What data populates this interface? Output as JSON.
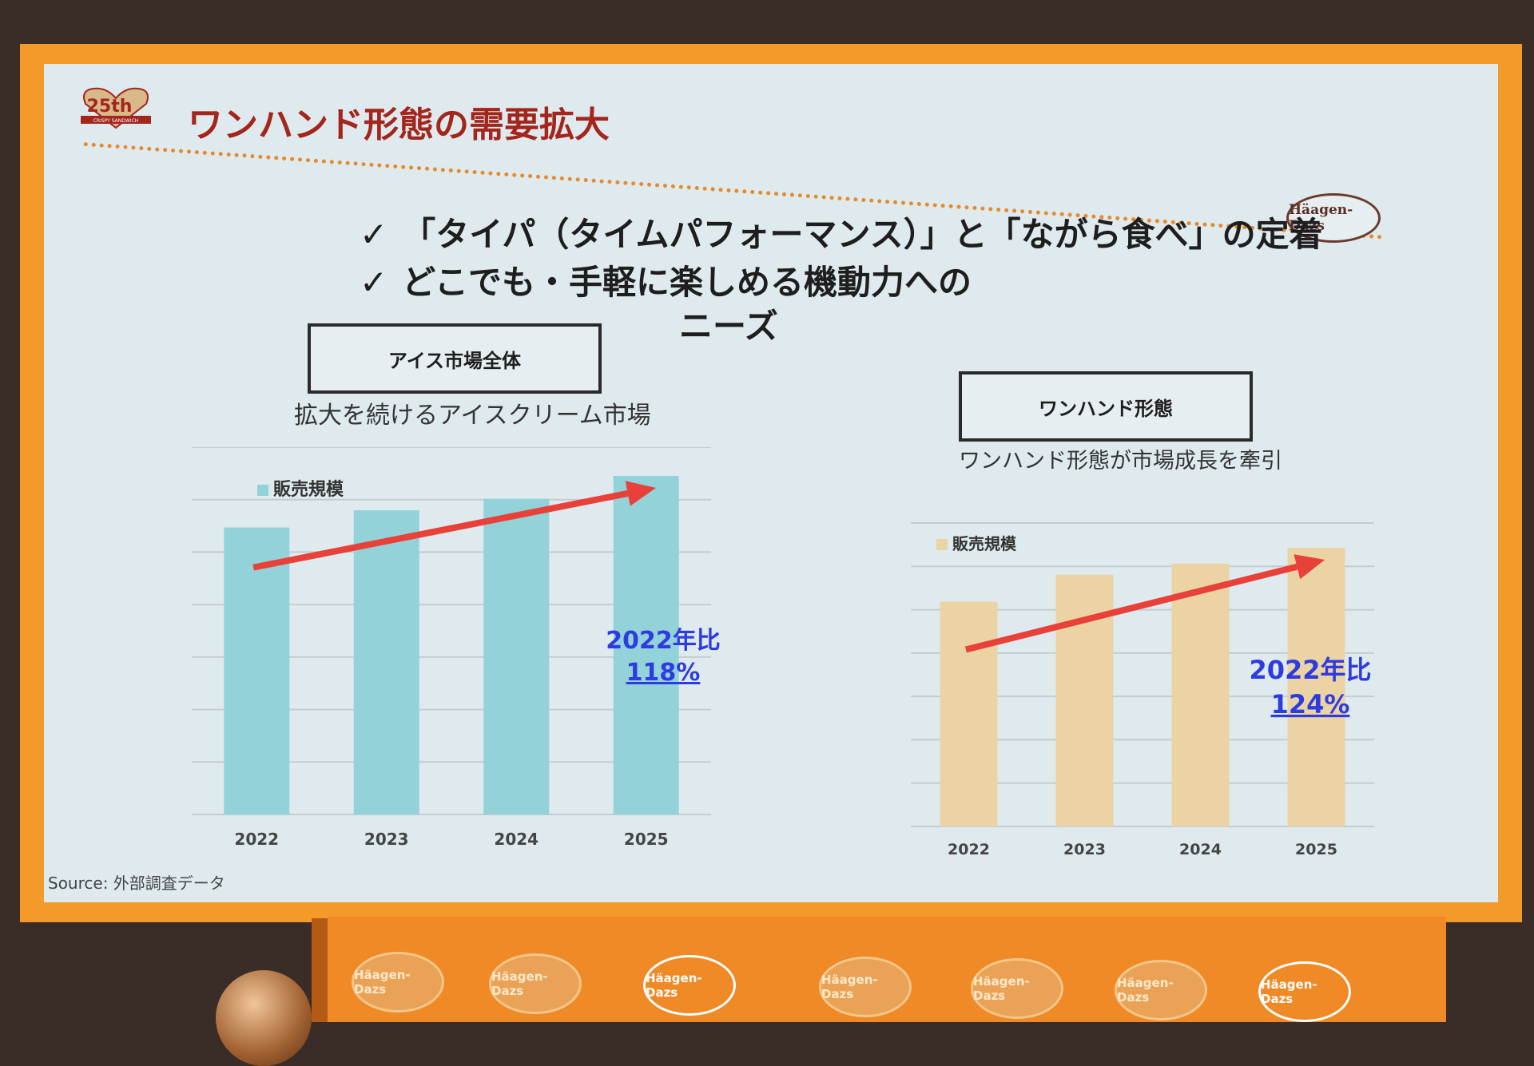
{
  "slide": {
    "logo_text": "25th",
    "logo_sub": "CRISPY SANDWICH",
    "title": "ワンハンド形態の需要拡大",
    "brand_logo": "Häagen-Dazs",
    "bullets": [
      "「タイパ（タイムパフォーマンス）」と「ながら食べ」の定着",
      "どこでも・手軽に楽しめる機動力への",
      "ニーズ"
    ],
    "check_icon": "✓",
    "source": "Source:  外部調査データ"
  },
  "left_panel": {
    "box_label": "アイス市場全体",
    "subtitle": "拡大を続けるアイスクリーム市場",
    "annotation_line1": "2022年比",
    "annotation_line2": "118%"
  },
  "right_panel": {
    "box_label": "ワンハンド形態",
    "subtitle": "ワンハンド形態が市場成長を牽引",
    "annotation_line1": "2022年比",
    "annotation_line2": "124%"
  },
  "podium": {
    "medals": [
      "Häagen-Dazs",
      "Häagen-Dazs",
      "Häagen-Dazs",
      "Häagen-Dazs",
      "Häagen-Dazs",
      "Häagen-Dazs",
      "Häagen-Dazs"
    ]
  },
  "chart_data": [
    {
      "type": "bar",
      "categories": [
        "2022",
        "2023",
        "2024",
        "2025"
      ],
      "series": [
        {
          "name": "販売規模",
          "values": [
            100,
            106,
            110,
            118
          ]
        }
      ],
      "ylim": [
        0,
        128
      ],
      "grid": true,
      "legend": "top-left",
      "color": "#93d2d8",
      "trend_color": "#e8413a",
      "annotation_color": "#2d3ce0"
    },
    {
      "type": "bar",
      "categories": [
        "2022",
        "2023",
        "2024",
        "2025"
      ],
      "series": [
        {
          "name": "販売規模",
          "values": [
            100,
            112,
            117,
            124
          ]
        }
      ],
      "ylim": [
        0,
        135
      ],
      "grid": true,
      "legend": "top-left",
      "color": "#ecd3a3",
      "trend_color": "#e8413a",
      "annotation_color": "#2d3ce0"
    }
  ]
}
